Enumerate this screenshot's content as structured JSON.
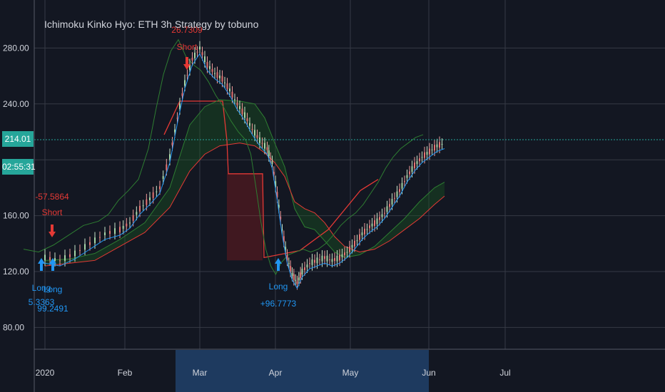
{
  "title": "Ichimoku Kinko Hyo: ETH 3h Strategy by tobuno",
  "colors": {
    "background": "#131722",
    "grid": "#363a45",
    "axis_text": "#d1d4dc",
    "price_line": "#26a69a",
    "badge": "#26a69a",
    "long": "#2196f3",
    "short": "#e53935",
    "cloud_red": "#b71c1c",
    "cloud_green": "#1b5e20",
    "tenkan": "#2196f3",
    "kijun": "#8b1a1a",
    "chikou": "#2e7d32",
    "axis_highlight": "#1e3a5f"
  },
  "price_label": "214.01",
  "time_label": "02:55:31",
  "chart_data": {
    "type": "line",
    "title": "Ichimoku Kinko Hyo: ETH 3h Strategy by tobuno",
    "y_ticks": [
      "280.00",
      "240.00",
      "214.01",
      "160.00",
      "120.00",
      "80.00"
    ],
    "x_ticks": [
      "2020",
      "Feb",
      "Mar",
      "Apr",
      "May",
      "Jun",
      "Jul"
    ],
    "ylim": [
      70,
      298
    ],
    "grid": true,
    "current_price": 214.01,
    "price_points": [
      [
        0,
        130
      ],
      [
        6,
        128
      ],
      [
        12,
        133
      ],
      [
        18,
        140
      ],
      [
        24,
        147
      ],
      [
        30,
        150
      ],
      [
        34,
        155
      ],
      [
        38,
        165
      ],
      [
        42,
        172
      ],
      [
        46,
        180
      ],
      [
        50,
        202
      ],
      [
        53,
        230
      ],
      [
        56,
        255
      ],
      [
        59,
        272
      ],
      [
        62,
        280
      ],
      [
        65,
        268
      ],
      [
        68,
        262
      ],
      [
        71,
        258
      ],
      [
        74,
        250
      ],
      [
        77,
        240
      ],
      [
        80,
        232
      ],
      [
        83,
        222
      ],
      [
        86,
        214
      ],
      [
        89,
        208
      ],
      [
        91,
        198
      ],
      [
        93,
        175
      ],
      [
        95,
        150
      ],
      [
        97,
        130
      ],
      [
        99,
        118
      ],
      [
        101,
        112
      ],
      [
        103,
        120
      ],
      [
        106,
        126
      ],
      [
        109,
        128
      ],
      [
        112,
        130
      ],
      [
        115,
        128
      ],
      [
        118,
        130
      ],
      [
        121,
        134
      ],
      [
        124,
        140
      ],
      [
        127,
        147
      ],
      [
        130,
        152
      ],
      [
        133,
        156
      ],
      [
        136,
        162
      ],
      [
        139,
        170
      ],
      [
        142,
        178
      ],
      [
        145,
        188
      ],
      [
        148,
        196
      ],
      [
        151,
        202
      ],
      [
        154,
        206
      ],
      [
        157,
        210
      ],
      [
        160,
        212
      ]
    ],
    "series": [
      {
        "name": "",
        "values": [
          [
            0,
            128
          ],
          [
            10,
            129
          ],
          [
            20,
            133
          ],
          [
            30,
            143
          ],
          [
            40,
            155
          ],
          [
            50,
            180
          ],
          [
            58,
            225
          ],
          [
            64,
            238
          ],
          [
            70,
            243
          ],
          [
            78,
            242
          ],
          [
            84,
            240
          ],
          [
            88,
            230
          ],
          [
            92,
            212
          ],
          [
            96,
            195
          ],
          [
            100,
            165
          ],
          [
            104,
            152
          ],
          [
            108,
            150
          ],
          [
            112,
            142
          ],
          [
            116,
            134
          ],
          [
            120,
            130
          ],
          [
            126,
            132
          ],
          [
            132,
            138
          ],
          [
            138,
            148
          ],
          [
            144,
            158
          ],
          [
            150,
            170
          ],
          [
            156,
            180
          ],
          [
            160,
            184
          ]
        ]
      },
      {
        "name": "",
        "values": [
          [
            0,
            124
          ],
          [
            10,
            126
          ],
          [
            20,
            128
          ],
          [
            30,
            138
          ],
          [
            40,
            148
          ],
          [
            50,
            166
          ],
          [
            58,
            192
          ],
          [
            64,
            204
          ],
          [
            70,
            210
          ],
          [
            78,
            212
          ],
          [
            84,
            210
          ],
          [
            88,
            205
          ],
          [
            92,
            198
          ],
          [
            96,
            188
          ],
          [
            100,
            170
          ],
          [
            104,
            165
          ],
          [
            108,
            162
          ],
          [
            112,
            155
          ],
          [
            116,
            145
          ],
          [
            120,
            138
          ],
          [
            126,
            134
          ],
          [
            132,
            136
          ],
          [
            138,
            142
          ],
          [
            144,
            150
          ],
          [
            150,
            158
          ],
          [
            156,
            168
          ],
          [
            160,
            174
          ]
        ]
      }
    ],
    "signals": [
      {
        "type": "Long",
        "value": "5.3363",
        "x_day": 1
      },
      {
        "type": "Long",
        "value": "99.2491",
        "x_day": 4
      },
      {
        "type": "Short",
        "value": "-57.5864",
        "x_day": 5
      },
      {
        "type": "Short",
        "value": "26.7309",
        "x_day": 63
      },
      {
        "type": "Long",
        "value": "+96.7773",
        "x_day": 104
      }
    ]
  }
}
